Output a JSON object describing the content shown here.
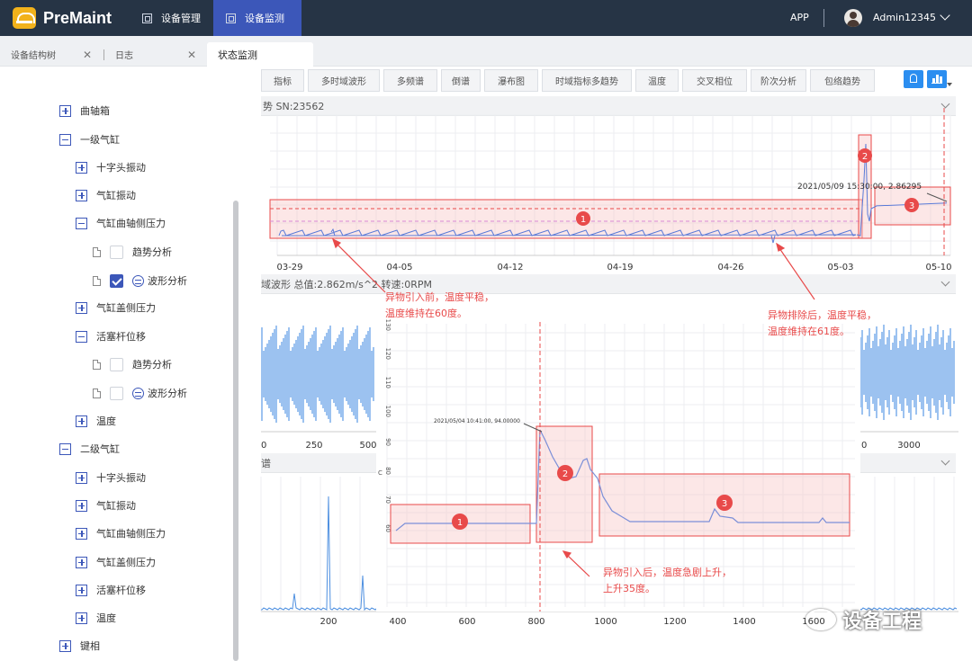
{
  "app": {
    "name": "PreMaint"
  },
  "nav": {
    "items": [
      {
        "label": "设备管理",
        "icon": "device-manage-icon"
      },
      {
        "label": "设备监测",
        "icon": "device-monitor-icon"
      }
    ],
    "app_label": "APP",
    "user": "Admin12345"
  },
  "page_tabs": [
    {
      "label": "设备结构树",
      "closable": true
    },
    {
      "label": "日志",
      "closable": true
    },
    {
      "label": "状态监测",
      "closable": false
    }
  ],
  "tree": {
    "crankcase": "曲轴箱",
    "stage1": "一级气缸",
    "crosshead_vib": "十字头振动",
    "cyl_vib": "气缸振动",
    "cyl_crank_pressure": "气缸曲轴侧压力",
    "trend": "趋势分析",
    "waveform": "波形分析",
    "cyl_head_pressure": "气缸盖侧压力",
    "rod_drop": "活塞杆位移",
    "temperature": "温度",
    "stage2": "二级气缸",
    "key_phase": "键相"
  },
  "function_tabs": [
    "指标",
    "多时域波形",
    "多频谱",
    "倒谱",
    "瀑布图",
    "时域指标多趋势",
    "温度",
    "交叉相位",
    "阶次分析",
    "包络趋势"
  ],
  "trend_panel": {
    "title": "势 SN:23562",
    "x_ticks": [
      "03-29",
      "04-05",
      "04-12",
      "04-19",
      "04-26",
      "05-03",
      "05-10"
    ],
    "cursor_label": "2021/05/09 15:30:00, 2.86295",
    "markers": [
      "1",
      "2",
      "3"
    ]
  },
  "wave_panel": {
    "title": "域波形 总值:2.862m/s^2 转速:0RPM",
    "x_ticks_left": [
      "0",
      "250",
      "500"
    ],
    "x_ticks_right": [
      "0",
      "3000"
    ]
  },
  "spectrum_panel": {
    "title": "谱",
    "x_ticks": [
      "200",
      "400",
      "600",
      "800",
      "1000",
      "1200",
      "1400",
      "1600"
    ]
  },
  "zoom_chart": {
    "y_ticks": [
      "130",
      "120",
      "110",
      "100",
      "90",
      "80",
      "70",
      "60"
    ],
    "y_axis_letter": "C",
    "cursor_label": "2021/05/04 10:41:00, 94.00000",
    "markers": [
      "1",
      "2",
      "3"
    ]
  },
  "annotations": {
    "before": [
      "异物引入前，温度平稳，",
      "温度维持在60度。"
    ],
    "after_removal": [
      "异物排除后，温度平稳，",
      "温度维持在61度。"
    ],
    "after_intro": [
      "异物引入后，温度急剧上升，",
      "上升35度。"
    ]
  },
  "watermark": "设备工程",
  "colors": {
    "nav_bg": "#263445",
    "nav_active": "#3c57b9",
    "series": "#5a7bd8",
    "highlight": "#e84a4a",
    "tool_btn": "#2b8ef0"
  },
  "chart_data": [
    {
      "type": "line",
      "title": "势 SN:23562",
      "x": [
        "03-29",
        "04-05",
        "04-12",
        "04-19",
        "04-26",
        "05-03",
        "05-10"
      ],
      "series": [
        {
          "values": [
            0.9,
            0.92,
            0.9,
            0.91,
            0.9,
            0.92,
            2.86
          ]
        }
      ],
      "annotations": [
        "1",
        "2",
        "3",
        "2021/05/09 15:30:00, 2.86295"
      ]
    },
    {
      "type": "line",
      "x": [
        "2021/05/04 10:41:00"
      ],
      "series": [
        {
          "values": [
            94.0
          ]
        }
      ],
      "ylim": [
        60,
        130
      ],
      "annotations": [
        "1",
        "2",
        "3"
      ]
    }
  ]
}
